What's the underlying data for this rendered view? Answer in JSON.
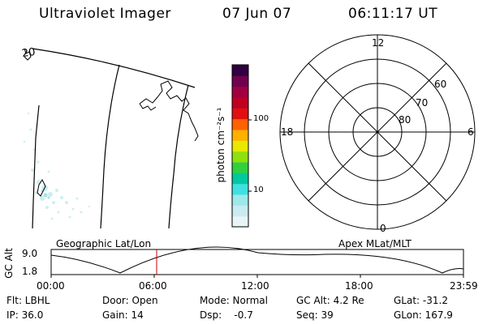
{
  "header": {
    "instrument": "Ultraviolet Imager",
    "date": "07 Jun 07",
    "time": "06:11:17 UT"
  },
  "map": {
    "corner_label": "20"
  },
  "colorbar": {
    "unit_label": "photon cm⁻²s⁻¹",
    "tick_100": "100",
    "tick_10": "10",
    "colors": [
      "#e8f4f8",
      "#c8ecf0",
      "#9ee8ec",
      "#40e0e0",
      "#00c8a0",
      "#30d040",
      "#90e010",
      "#e8e800",
      "#ffb000",
      "#ff6000",
      "#e01010",
      "#c00020",
      "#a00040",
      "#700050",
      "#300040"
    ]
  },
  "polar_plot": {
    "mlt_labels": {
      "top": "12",
      "left": "18",
      "right": "6",
      "bottom": "0"
    },
    "lat_labels": [
      "60",
      "70",
      "80"
    ]
  },
  "altitude_panel": {
    "left_title": "Geographic Lat/Lon",
    "right_title": "Apex MLat/MLT",
    "axis_label": "GC Alt",
    "y_top": "9.0",
    "y_bottom": "1.8",
    "x_ticks": [
      "00:00",
      "06:00",
      "12:00",
      "18:00",
      "23:59"
    ],
    "marker_color": "#cc0000"
  },
  "info": {
    "flt": "Flt: LBHL",
    "ip": "IP: 36.0",
    "door": "Door: Open",
    "gain": "Gain: 14",
    "mode": "Mode: Normal",
    "dsp": "Dsp:    -0.7",
    "gcalt": "GC Alt: 4.2 Re",
    "seq": "Seq: 39",
    "glat": "GLat: -31.2",
    "glon": "GLon: 167.9"
  }
}
